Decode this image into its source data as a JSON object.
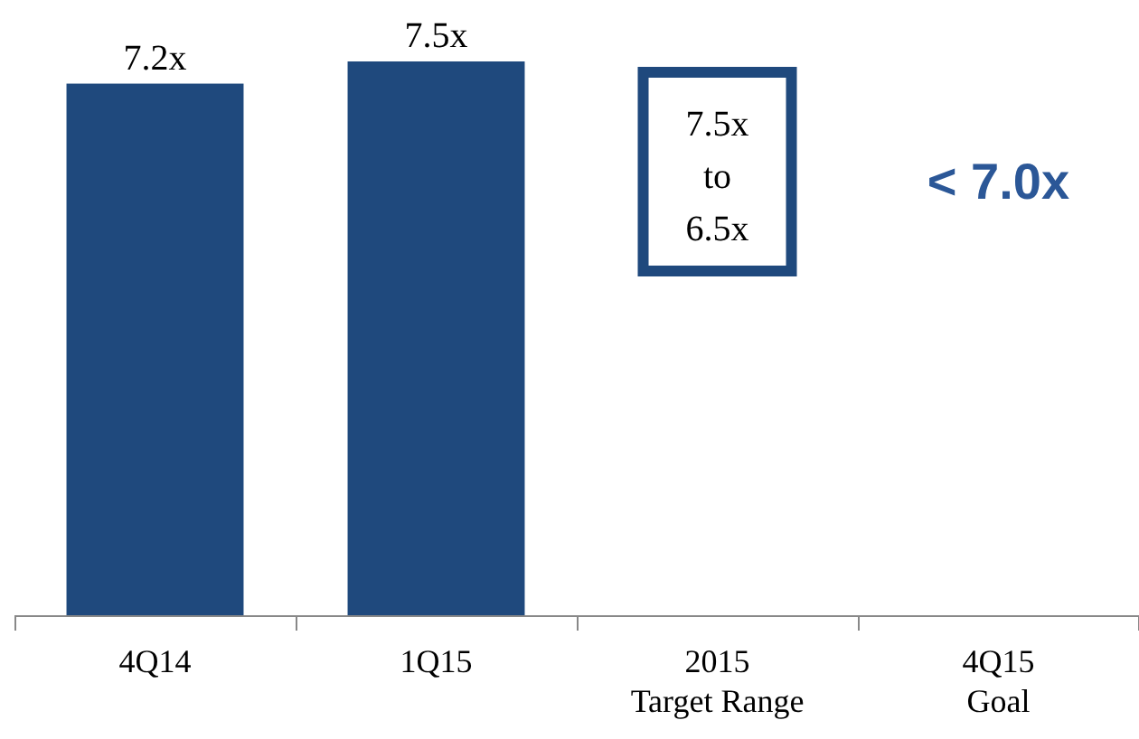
{
  "chart_data": {
    "type": "bar",
    "categories": [
      "4Q14",
      "1Q15",
      "2015\nTarget Range",
      "4Q15\nGoal"
    ],
    "values": [
      7.2,
      7.5,
      null,
      null
    ],
    "value_labels": [
      "7.2x",
      "7.5x",
      null,
      null
    ],
    "color": "#1f497d",
    "annotations": [
      "7.5x\nto\n6.5x",
      "< 7.0x"
    ]
  }
}
